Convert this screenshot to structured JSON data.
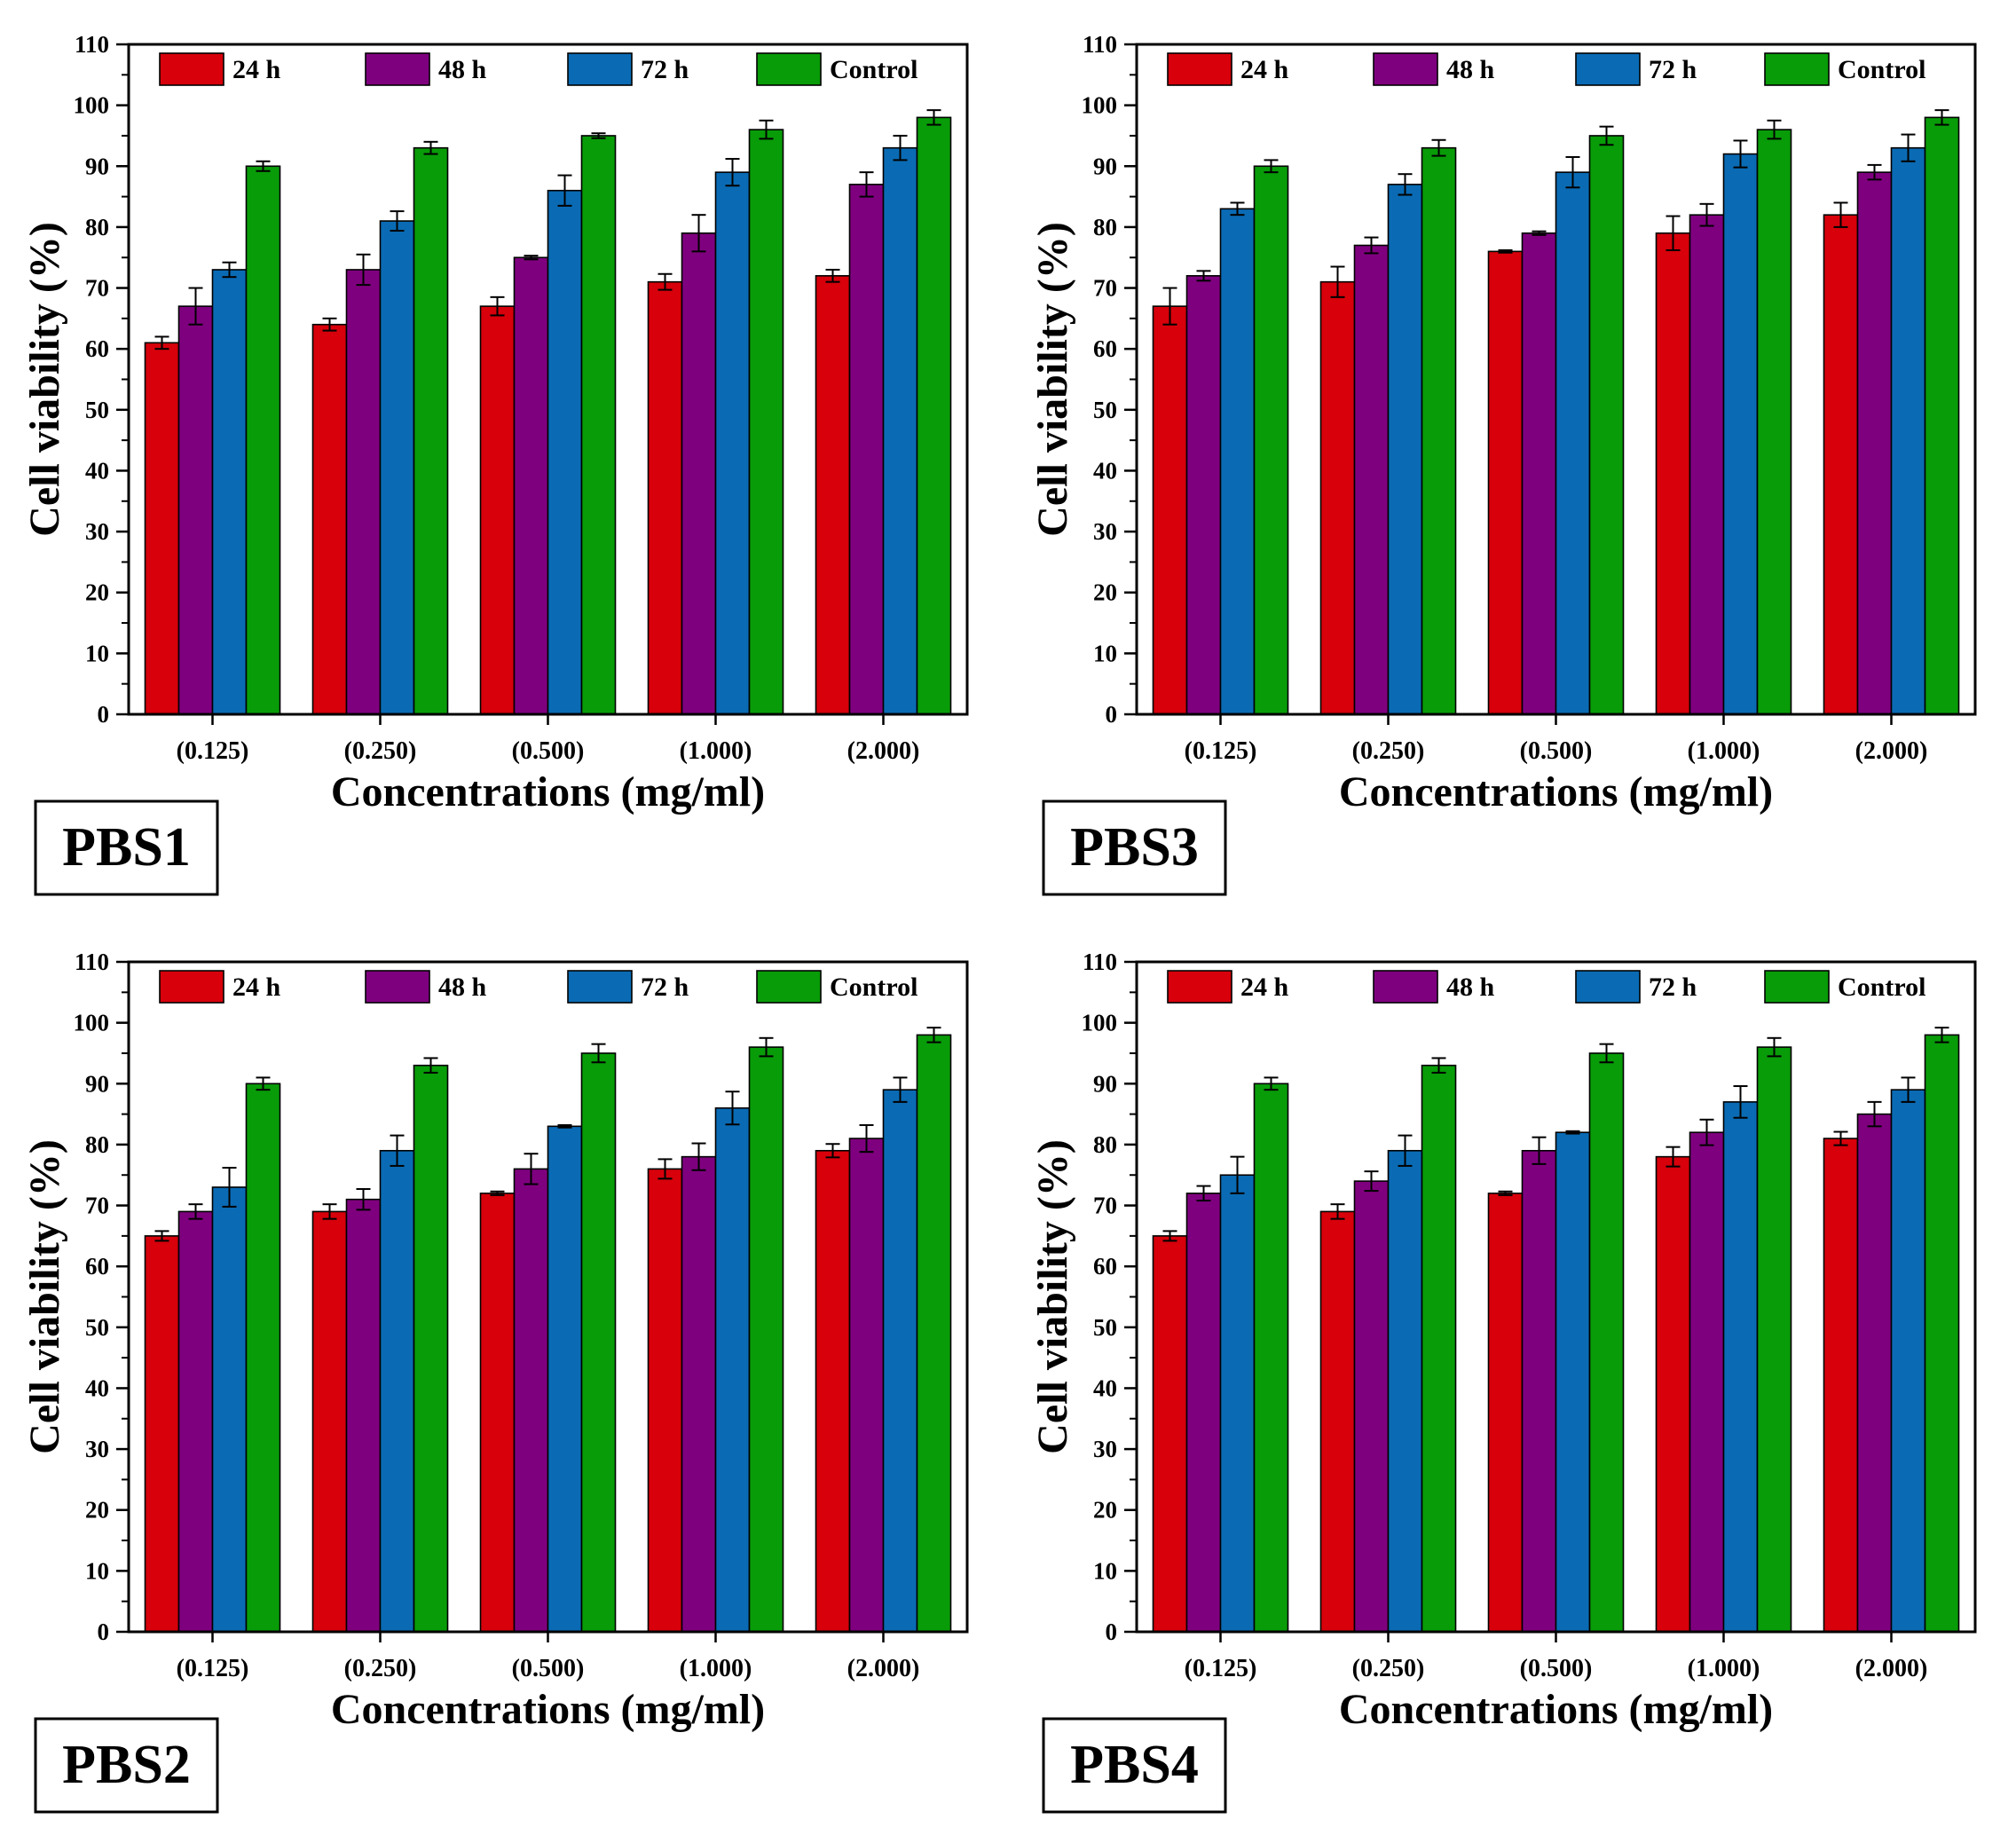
{
  "colors": {
    "series": [
      "#d7000b",
      "#7f007f",
      "#0a6bb4",
      "#089c08"
    ],
    "axis": "#000000",
    "background": "#ffffff"
  },
  "chart_data": [
    {
      "type": "bar",
      "panel_label": "PBS1",
      "xlabel": "Concentrations (mg/ml)",
      "ylabel": "Cell viability (%)",
      "ylim": [
        0,
        110
      ],
      "yticks": [
        0,
        10,
        20,
        30,
        40,
        50,
        60,
        70,
        80,
        90,
        100,
        110
      ],
      "categories": [
        "(0.125)",
        "(0.250)",
        "(0.500)",
        "(1.000)",
        "(2.000)"
      ],
      "legend": "top, single row inside plot",
      "series": [
        {
          "name": "24 h",
          "values": [
            61,
            64,
            67,
            71,
            72
          ],
          "errors": [
            1,
            1,
            1.5,
            1.3,
            1
          ]
        },
        {
          "name": "48 h",
          "values": [
            67,
            73,
            75,
            79,
            87
          ],
          "errors": [
            3,
            2.5,
            0.3,
            3,
            2
          ]
        },
        {
          "name": "72 h",
          "values": [
            73,
            81,
            86,
            89,
            93
          ],
          "errors": [
            1.2,
            1.6,
            2.5,
            2.2,
            2
          ]
        },
        {
          "name": "Control",
          "values": [
            90,
            93,
            95,
            96,
            98
          ],
          "errors": [
            0.8,
            1,
            0.4,
            1.5,
            1.2
          ]
        }
      ]
    },
    {
      "type": "bar",
      "panel_label": "PBS3",
      "xlabel": "Concentrations (mg/ml)",
      "ylabel": "Cell viability (%)",
      "ylim": [
        0,
        110
      ],
      "yticks": [
        0,
        10,
        20,
        30,
        40,
        50,
        60,
        70,
        80,
        90,
        100,
        110
      ],
      "categories": [
        "(0.125)",
        "(0.250)",
        "(0.500)",
        "(1.000)",
        "(2.000)"
      ],
      "legend": "top, single row inside plot",
      "series": [
        {
          "name": "24 h",
          "values": [
            67,
            71,
            76,
            79,
            82
          ],
          "errors": [
            3,
            2.5,
            0.2,
            2.8,
            2
          ]
        },
        {
          "name": "48 h",
          "values": [
            72,
            77,
            79,
            82,
            89
          ],
          "errors": [
            0.8,
            1.3,
            0.3,
            1.8,
            1.2
          ]
        },
        {
          "name": "72 h",
          "values": [
            83,
            87,
            89,
            92,
            93
          ],
          "errors": [
            1,
            1.7,
            2.5,
            2.2,
            2.2
          ]
        },
        {
          "name": "Control",
          "values": [
            90,
            93,
            95,
            96,
            98
          ],
          "errors": [
            1,
            1.3,
            1.5,
            1.5,
            1.2
          ]
        }
      ]
    },
    {
      "type": "bar",
      "panel_label": "PBS2",
      "xlabel": "Concentrations (mg/ml)",
      "ylabel": "Cell viability (%)",
      "ylim": [
        0,
        110
      ],
      "yticks": [
        0,
        10,
        20,
        30,
        40,
        50,
        60,
        70,
        80,
        90,
        100,
        110
      ],
      "categories": [
        "(0.125)",
        "(0.250)",
        "(0.500)",
        "(1.000)",
        "(2.000)"
      ],
      "legend": "top, single row inside plot",
      "series": [
        {
          "name": "24 h",
          "values": [
            65,
            69,
            72,
            76,
            79
          ],
          "errors": [
            0.8,
            1.2,
            0.3,
            1.6,
            1.1
          ]
        },
        {
          "name": "48 h",
          "values": [
            69,
            71,
            76,
            78,
            81
          ],
          "errors": [
            1.2,
            1.7,
            2.5,
            2.2,
            2.2
          ]
        },
        {
          "name": "72 h",
          "values": [
            73,
            79,
            83,
            86,
            89
          ],
          "errors": [
            3.2,
            2.5,
            0.2,
            2.7,
            2
          ]
        },
        {
          "name": "Control",
          "values": [
            90,
            93,
            95,
            96,
            98
          ],
          "errors": [
            1,
            1.2,
            1.5,
            1.5,
            1.2
          ]
        }
      ]
    },
    {
      "type": "bar",
      "panel_label": "PBS4",
      "xlabel": "Concentrations (mg/ml)",
      "ylabel": "Cell viability (%)",
      "ylim": [
        0,
        110
      ],
      "yticks": [
        0,
        10,
        20,
        30,
        40,
        50,
        60,
        70,
        80,
        90,
        100,
        110
      ],
      "categories": [
        "(0.125)",
        "(0.250)",
        "(0.500)",
        "(1.000)",
        "(2.000)"
      ],
      "legend": "top, single row inside plot",
      "series": [
        {
          "name": "24 h",
          "values": [
            65,
            69,
            72,
            78,
            81
          ],
          "errors": [
            0.8,
            1.2,
            0.3,
            1.6,
            1.1
          ]
        },
        {
          "name": "48 h",
          "values": [
            72,
            74,
            79,
            82,
            85
          ],
          "errors": [
            1.2,
            1.6,
            2.2,
            2.1,
            2
          ]
        },
        {
          "name": "72 h",
          "values": [
            75,
            79,
            82,
            87,
            89
          ],
          "errors": [
            3,
            2.5,
            0.2,
            2.6,
            2
          ]
        },
        {
          "name": "Control",
          "values": [
            90,
            93,
            95,
            96,
            98
          ],
          "errors": [
            1,
            1.2,
            1.5,
            1.5,
            1.2
          ]
        }
      ]
    }
  ]
}
